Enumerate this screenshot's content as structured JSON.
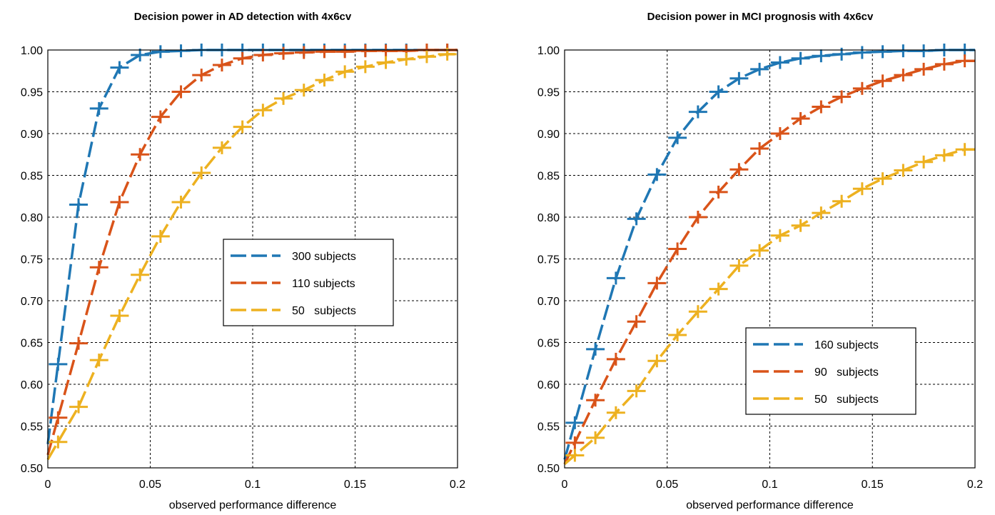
{
  "chart_data": [
    {
      "type": "line",
      "title": "Decision power in AD detection with 4x6cv",
      "xlabel": "observed performance difference",
      "ylabel": "",
      "xlim": [
        0,
        0.2
      ],
      "ylim": [
        0.5,
        1.0
      ],
      "xticks": [
        "0",
        "0.05",
        "0.1",
        "0.15",
        "0.2"
      ],
      "yticks": [
        "0.50",
        "0.55",
        "0.60",
        "0.65",
        "0.70",
        "0.75",
        "0.80",
        "0.85",
        "0.90",
        "0.95",
        "1.00"
      ],
      "grid": true,
      "legend_position": "center-right",
      "x": [
        0.005,
        0.015,
        0.025,
        0.035,
        0.045,
        0.055,
        0.065,
        0.075,
        0.085,
        0.095,
        0.105,
        0.115,
        0.125,
        0.135,
        0.145,
        0.155,
        0.165,
        0.175,
        0.185,
        0.195
      ],
      "series": [
        {
          "name": "300 subjects",
          "color": "#1f77b4",
          "values": [
            0.624,
            0.815,
            0.93,
            0.979,
            0.994,
            0.998,
            0.999,
            1.0,
            1.0,
            1.0,
            1.0,
            1.0,
            1.0,
            1.0,
            1.0,
            1.0,
            1.0,
            1.0,
            1.0,
            1.0
          ]
        },
        {
          "name": "110 subjects",
          "color": "#d95319",
          "values": [
            0.56,
            0.649,
            0.74,
            0.818,
            0.875,
            0.92,
            0.95,
            0.97,
            0.982,
            0.99,
            0.994,
            0.996,
            0.997,
            0.998,
            0.998,
            0.999,
            0.999,
            0.999,
            1.0,
            1.0
          ]
        },
        {
          "name": "50   subjects",
          "color": "#edb120",
          "values": [
            0.531,
            0.573,
            0.629,
            0.682,
            0.731,
            0.777,
            0.818,
            0.853,
            0.883,
            0.908,
            0.928,
            0.942,
            0.952,
            0.964,
            0.974,
            0.98,
            0.985,
            0.989,
            0.992,
            0.995
          ]
        }
      ]
    },
    {
      "type": "line",
      "title": "Decision power in MCI prognosis with 4x6cv",
      "xlabel": "observed performance difference",
      "ylabel": "",
      "xlim": [
        0,
        0.2
      ],
      "ylim": [
        0.5,
        1.0
      ],
      "xticks": [
        "0",
        "0.05",
        "0.1",
        "0.15",
        "0.2"
      ],
      "yticks": [
        "0.50",
        "0.55",
        "0.60",
        "0.65",
        "0.70",
        "0.75",
        "0.80",
        "0.85",
        "0.90",
        "0.95",
        "1.00"
      ],
      "grid": true,
      "legend_position": "bottom-right",
      "x": [
        0.005,
        0.015,
        0.025,
        0.035,
        0.045,
        0.055,
        0.065,
        0.075,
        0.085,
        0.095,
        0.105,
        0.115,
        0.125,
        0.135,
        0.145,
        0.155,
        0.165,
        0.175,
        0.185,
        0.195
      ],
      "series": [
        {
          "name": "160 subjects",
          "color": "#1f77b4",
          "values": [
            0.554,
            0.642,
            0.727,
            0.798,
            0.851,
            0.895,
            0.926,
            0.95,
            0.966,
            0.977,
            0.985,
            0.99,
            0.993,
            0.995,
            0.997,
            0.998,
            0.999,
            0.999,
            1.0,
            1.0
          ]
        },
        {
          "name": "90   subjects",
          "color": "#d95319",
          "values": [
            0.53,
            0.581,
            0.63,
            0.675,
            0.721,
            0.762,
            0.8,
            0.83,
            0.857,
            0.882,
            0.9,
            0.918,
            0.932,
            0.944,
            0.954,
            0.963,
            0.97,
            0.977,
            0.983,
            0.987
          ]
        },
        {
          "name": "50   subjects",
          "color": "#edb120",
          "values": [
            0.515,
            0.536,
            0.566,
            0.592,
            0.628,
            0.659,
            0.687,
            0.714,
            0.742,
            0.76,
            0.778,
            0.79,
            0.805,
            0.819,
            0.834,
            0.846,
            0.856,
            0.866,
            0.874,
            0.881
          ]
        }
      ]
    }
  ]
}
